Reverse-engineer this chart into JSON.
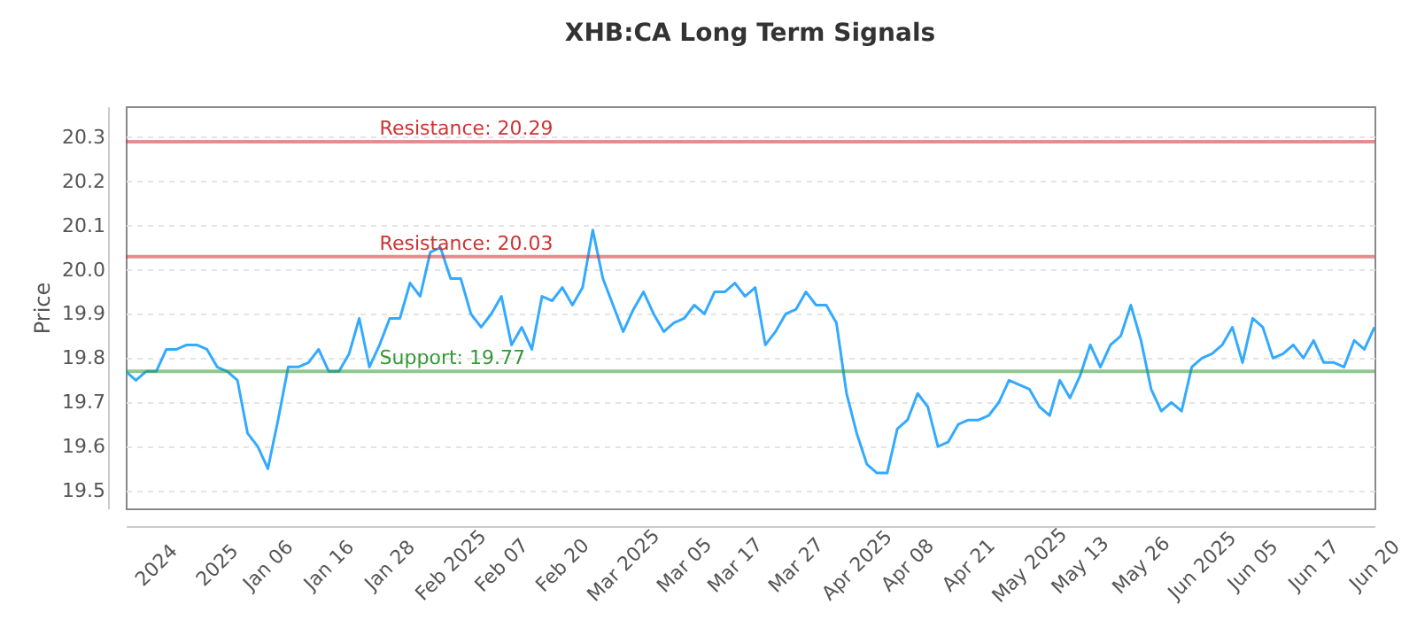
{
  "chart_data": {
    "type": "line",
    "title": "XHB:CA Long Term Signals",
    "ylabel": "Price",
    "categories": [
      null,
      null,
      null,
      "2024",
      null,
      null,
      null,
      null,
      null,
      "2025",
      null,
      null,
      null,
      null,
      "Jan 06",
      null,
      null,
      null,
      null,
      null,
      "Jan 16",
      null,
      null,
      null,
      null,
      null,
      "Jan 28",
      null,
      null,
      null,
      null,
      null,
      "Feb 2025",
      null,
      null,
      null,
      null,
      "Feb 07",
      null,
      null,
      null,
      null,
      null,
      "Feb 20",
      null,
      null,
      null,
      null,
      null,
      "Mar 2025",
      null,
      null,
      null,
      null,
      null,
      "Mar 05",
      null,
      null,
      null,
      null,
      "Mar 17",
      null,
      null,
      null,
      null,
      null,
      "Mar 27",
      null,
      null,
      null,
      null,
      null,
      "Apr 2025",
      null,
      null,
      null,
      null,
      "Apr 08",
      null,
      null,
      null,
      null,
      null,
      "Apr 21",
      null,
      null,
      null,
      null,
      null,
      "May 2025",
      null,
      null,
      null,
      null,
      "May 13",
      null,
      null,
      null,
      null,
      null,
      "May 26",
      null,
      null,
      null,
      null,
      null,
      "Jun 2025",
      null,
      null,
      null,
      null,
      "Jun 05",
      null,
      null,
      null,
      null,
      null,
      "Jun 17",
      null,
      null,
      null,
      null,
      null,
      "Jun 20"
    ],
    "series": [
      {
        "color": "#33aaff",
        "values": [
          19.77,
          19.75,
          19.77,
          19.77,
          19.82,
          19.82,
          19.83,
          19.83,
          19.82,
          19.78,
          19.77,
          19.75,
          19.63,
          19.6,
          19.55,
          19.66,
          19.78,
          19.78,
          19.79,
          19.82,
          19.77,
          19.77,
          19.81,
          19.89,
          19.78,
          19.83,
          19.89,
          19.89,
          19.97,
          19.94,
          20.04,
          20.05,
          19.98,
          19.98,
          19.9,
          19.87,
          19.9,
          19.94,
          19.83,
          19.87,
          19.82,
          19.94,
          19.93,
          19.96,
          19.92,
          19.96,
          20.09,
          19.98,
          19.92,
          19.86,
          19.91,
          19.95,
          19.9,
          19.86,
          19.88,
          19.89,
          19.92,
          19.9,
          19.95,
          19.95,
          19.97,
          19.94,
          19.96,
          19.83,
          19.86,
          19.9,
          19.91,
          19.95,
          19.92,
          19.92,
          19.88,
          19.72,
          19.63,
          19.56,
          19.54,
          19.54,
          19.64,
          19.66,
          19.72,
          19.69,
          19.6,
          19.61,
          19.65,
          19.66,
          19.66,
          19.67,
          19.7,
          19.75,
          19.74,
          19.73,
          19.69,
          19.67,
          19.75,
          19.71,
          19.76,
          19.83,
          19.78,
          19.83,
          19.85,
          19.92,
          19.84,
          19.73,
          19.68,
          19.7,
          19.68,
          19.78,
          19.8,
          19.81,
          19.83,
          19.87,
          19.79,
          19.89,
          19.87,
          19.8,
          19.81,
          19.83,
          19.8,
          19.84,
          19.79,
          19.79,
          19.78,
          19.84,
          19.82,
          19.87
        ]
      }
    ],
    "ylim": [
      19.46,
      20.37
    ],
    "yticks": [
      19.5,
      19.6,
      19.7,
      19.8,
      19.9,
      {
        "value": 20.0,
        "label": "20.0"
      },
      20.1,
      20.2,
      20.3
    ],
    "grid": "y",
    "marker": "none",
    "line_style": "solid",
    "ref_lines": [
      {
        "axis": "y",
        "value": 20.29,
        "label": "Resistance: 20.29",
        "color": "#cc3333"
      },
      {
        "axis": "y",
        "value": 20.03,
        "label": "Resistance: 20.03",
        "color": "#cc3333"
      },
      {
        "axis": "y",
        "value": 19.77,
        "label": "Support: 19.77",
        "color": "#339933"
      }
    ]
  }
}
